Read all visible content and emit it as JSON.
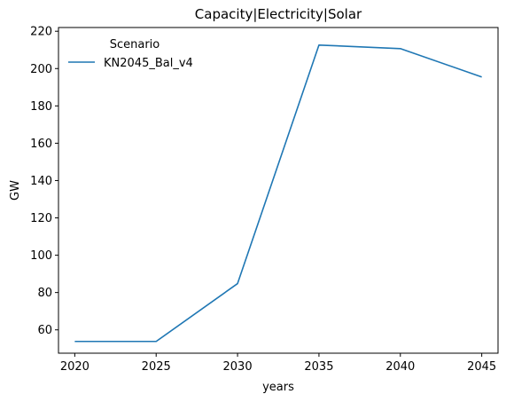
{
  "chart_data": {
    "type": "line",
    "title": "Capacity|Electricity|Solar",
    "xlabel": "years",
    "ylabel": "GW",
    "x": [
      2020,
      2025,
      2030,
      2035,
      2040,
      2045
    ],
    "xticks": [
      2020,
      2025,
      2030,
      2035,
      2040,
      2045
    ],
    "yticks": [
      60,
      80,
      100,
      120,
      140,
      160,
      180,
      200,
      220
    ],
    "xlim": [
      2019,
      2046
    ],
    "ylim": [
      47.5,
      222
    ],
    "grid": false,
    "legend": {
      "title": "Scenario",
      "placement": "top-left"
    },
    "series": [
      {
        "name": "KN2045_Bal_v4",
        "color": "#1f77b4",
        "values": [
          53.8,
          53.8,
          84.8,
          212.6,
          210.7,
          195.5
        ]
      }
    ]
  }
}
